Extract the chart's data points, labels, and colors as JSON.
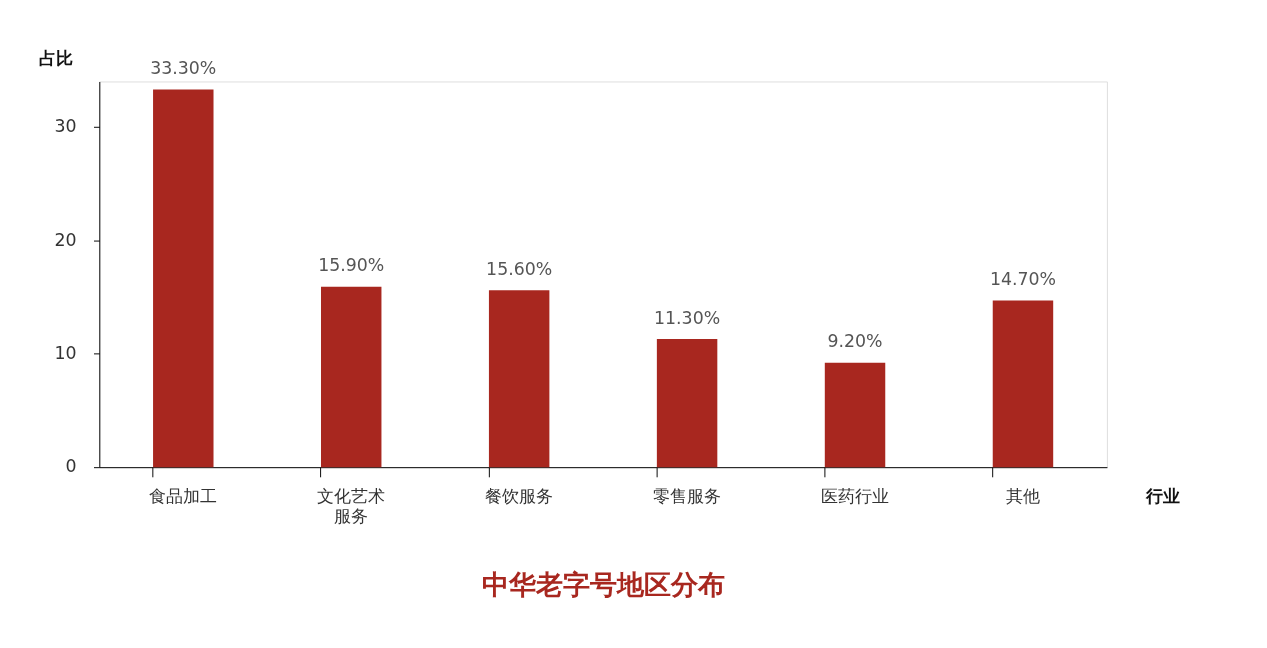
{
  "chart_data": {
    "type": "bar",
    "title": "中华老字号地区分布",
    "xlabel": "行业",
    "ylabel": "占比",
    "categories": [
      "食品加工",
      "文化艺术服务",
      "餐饮服务",
      "零售服务",
      "医药行业",
      "其他"
    ],
    "values": [
      33.3,
      15.9,
      15.6,
      11.3,
      9.2,
      14.7
    ],
    "value_labels": [
      "33.30%",
      "15.90%",
      "15.60%",
      "11.30%",
      "9.20%",
      "14.70%"
    ],
    "color": "#a8271f",
    "ylim": [
      0,
      34
    ],
    "yticks": [
      0,
      10,
      20,
      30
    ],
    "grid": false
  }
}
